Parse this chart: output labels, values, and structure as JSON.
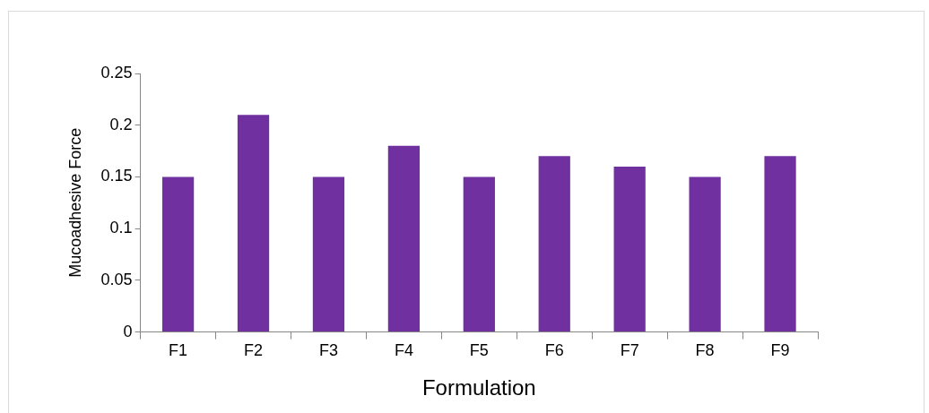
{
  "chart_data": {
    "type": "bar",
    "xlabel": "Formulation",
    "ylabel": "Mucoadhesive Force",
    "categories": [
      "F1",
      "F2",
      "F3",
      "F4",
      "F5",
      "F6",
      "F7",
      "F8",
      "F9"
    ],
    "values": [
      0.15,
      0.21,
      0.15,
      0.18,
      0.15,
      0.17,
      0.16,
      0.15,
      0.17
    ],
    "color": "#7030a0",
    "ylim": [
      0,
      0.25
    ],
    "yticks": [
      0,
      0.05,
      0.1,
      0.15,
      0.2,
      0.25
    ],
    "grid": false,
    "legend": false
  }
}
